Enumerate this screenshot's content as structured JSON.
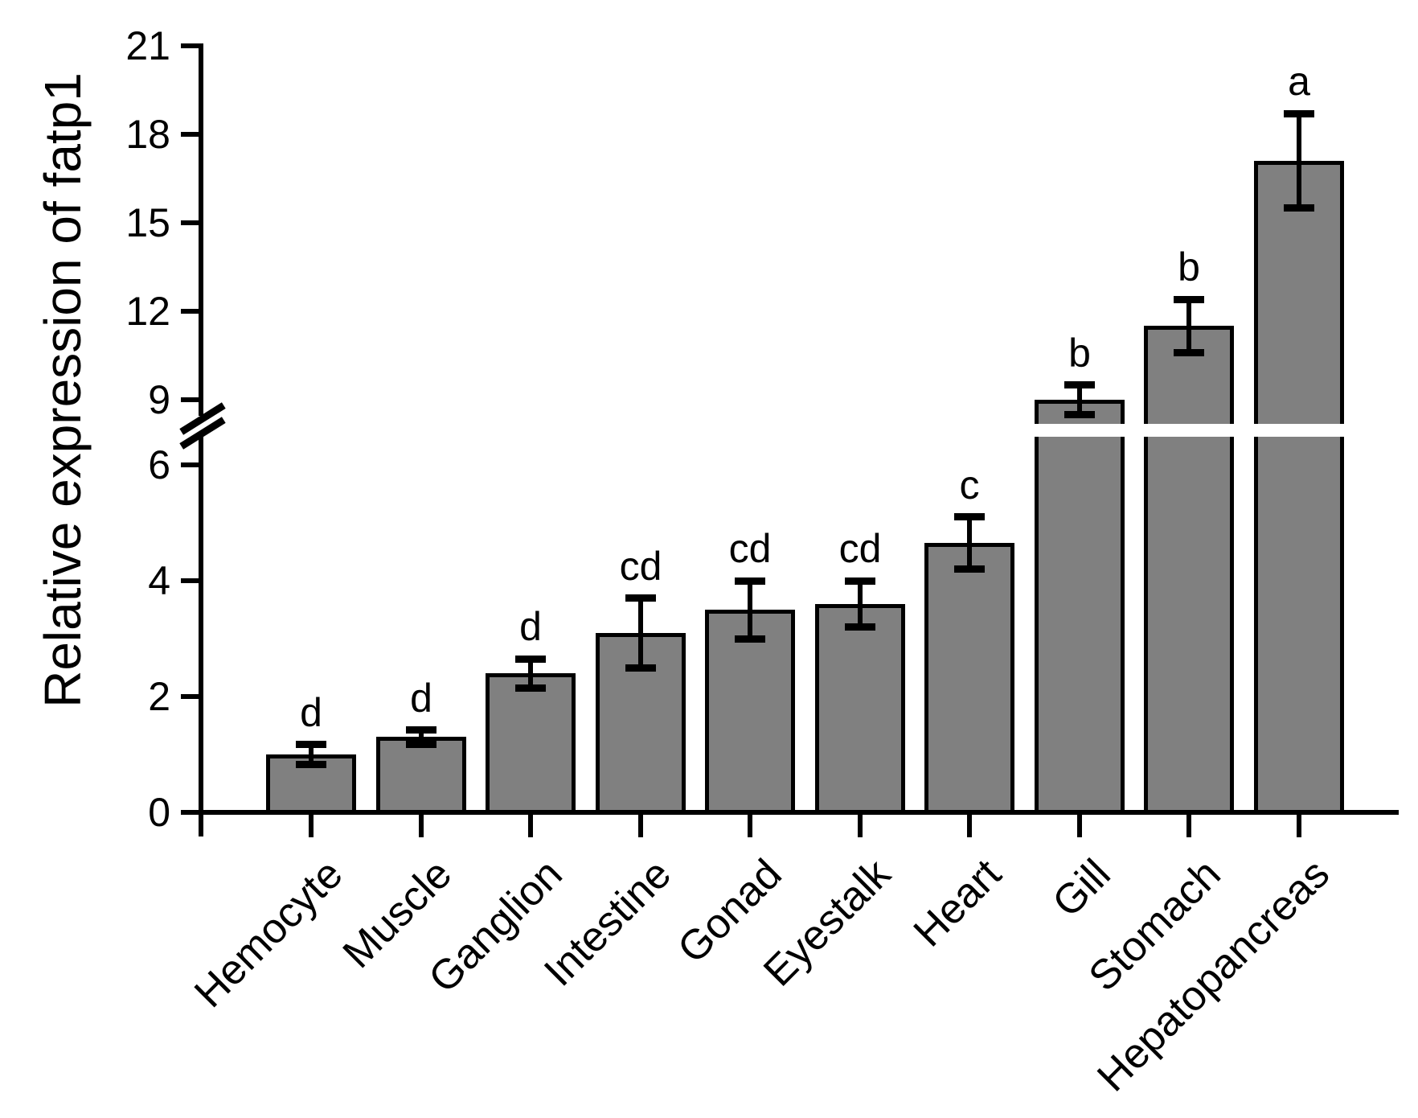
{
  "chart_data": {
    "type": "bar",
    "title": "",
    "ylabel": "Relative expression of fatp1",
    "xlabel": "",
    "categories": [
      "Hemocyte",
      "Muscle",
      "Ganglion",
      "Intestine",
      "Gonad",
      "Eyestalk",
      "Heart",
      "Gill",
      "Stomach",
      "Hepatopancreas"
    ],
    "series": [
      {
        "name": "Relative expression of fatp1",
        "values": [
          1.0,
          1.3,
          2.4,
          3.1,
          3.5,
          3.6,
          4.65,
          9.0,
          11.5,
          17.1
        ],
        "errors": [
          0.17,
          0.12,
          0.25,
          0.6,
          0.5,
          0.4,
          0.45,
          0.5,
          0.9,
          1.6
        ]
      }
    ],
    "sig_letters": [
      "d",
      "d",
      "d",
      "cd",
      "cd",
      "cd",
      "c",
      "b",
      "b",
      "a"
    ],
    "y_ticks_lower": [
      0,
      2,
      4,
      6
    ],
    "y_ticks_upper": [
      9,
      12,
      15,
      18,
      21
    ],
    "ylim": [
      0,
      21
    ],
    "axis_break": {
      "between": [
        6.5,
        8.2
      ],
      "style": "double-slash"
    },
    "grid": false,
    "legend": false,
    "bar_color": "#808080",
    "bar_border_color": "#000000",
    "error_color": "#000000",
    "axis_color": "#000000",
    "text_color": "#000000",
    "background": "#ffffff"
  }
}
